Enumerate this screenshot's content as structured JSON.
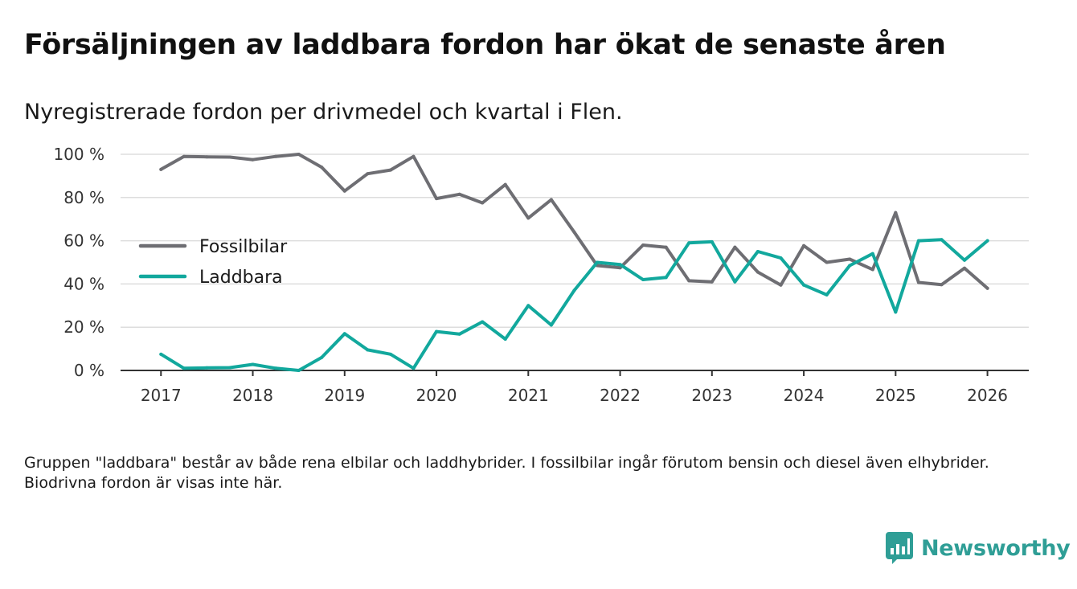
{
  "title": "Försäljningen av laddbara fordon har ökat de senaste åren",
  "subtitle": "Nyregistrerade fordon per drivmedel och kvartal i Flen.",
  "footnote": "Gruppen \"laddbara\" består av både rena elbilar och laddhybrider. I fossilbilar ingår förutom bensin och diesel även elhybrider. Biodrivna fordon är visas inte här.",
  "brand": {
    "name": "Newsworthy",
    "color": "#2f9e96",
    "icon": "bar-chart-icon"
  },
  "chart_data": {
    "type": "line",
    "title": "Nyregistrerade fordon per drivmedel och kvartal i Flen.",
    "xlabel": "",
    "ylabel": "",
    "x": [
      2017.0,
      2017.25,
      2017.5,
      2017.75,
      2018.0,
      2018.25,
      2018.5,
      2018.75,
      2019.0,
      2019.25,
      2019.5,
      2019.75,
      2020.0,
      2020.25,
      2020.5,
      2020.75,
      2021.0,
      2021.25,
      2021.5,
      2021.75,
      2022.0,
      2022.25,
      2022.5,
      2022.75,
      2023.0,
      2023.25,
      2023.5,
      2023.75,
      2024.0,
      2024.25,
      2024.5,
      2024.75,
      2025.0,
      2025.25,
      2025.5,
      2025.75,
      2026.0
    ],
    "xlim": [
      2016.56,
      2026.45
    ],
    "ylim": [
      0,
      100
    ],
    "x_ticks": [
      2017,
      2018,
      2019,
      2020,
      2021,
      2022,
      2023,
      2024,
      2025,
      2026
    ],
    "x_tick_labels": [
      "2017",
      "2018",
      "2019",
      "2020",
      "2021",
      "2022",
      "2023",
      "2024",
      "2025",
      "2026"
    ],
    "y_ticks": [
      0,
      20,
      40,
      60,
      80,
      100
    ],
    "y_tick_labels": [
      "0 %",
      "20 %",
      "40 %",
      "60 %",
      "80 %",
      "100 %"
    ],
    "grid": true,
    "legend_position": "center-left",
    "series": [
      {
        "name": "Fossilbilar",
        "color": "#6e6e73",
        "values": [
          93,
          99,
          98.8,
          98.7,
          97.5,
          99,
          100,
          94,
          83,
          91,
          92.7,
          99,
          79.5,
          81.5,
          77.5,
          86,
          70.5,
          79,
          64,
          48.5,
          47.5,
          58,
          57,
          41.5,
          41,
          57,
          45.5,
          39.5,
          57.7,
          50,
          51.5,
          46.7,
          73,
          40.7,
          39.7,
          47.3,
          38
        ]
      },
      {
        "name": "Laddbara",
        "color": "#12a89d",
        "values": [
          7.5,
          1,
          1.2,
          1.3,
          2.8,
          1,
          0,
          6,
          17,
          9.5,
          7.5,
          1,
          18,
          16.8,
          22.5,
          14.5,
          30,
          21,
          37,
          50,
          49,
          42,
          43,
          59,
          59.5,
          41,
          55,
          52,
          39.5,
          35,
          48.5,
          54,
          27,
          60,
          60.5,
          51,
          60
        ]
      }
    ]
  }
}
